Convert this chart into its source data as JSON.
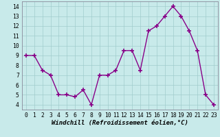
{
  "x": [
    0,
    1,
    2,
    3,
    4,
    5,
    6,
    7,
    8,
    9,
    10,
    11,
    12,
    13,
    14,
    15,
    16,
    17,
    18,
    19,
    20,
    21,
    22,
    23
  ],
  "y": [
    9,
    9,
    7.5,
    7,
    5,
    5,
    4.8,
    5.5,
    4,
    7,
    7,
    7.5,
    9.5,
    9.5,
    7.5,
    11.5,
    12,
    13,
    14,
    13,
    11.5,
    9.5,
    5,
    4
  ],
  "line_color": "#880088",
  "marker_color": "#880088",
  "bg_color": "#c8eaea",
  "grid_color": "#a0cccc",
  "xlabel": "Windchill (Refroidissement éolien,°C)",
  "ylim": [
    3.5,
    14.5
  ],
  "xlim": [
    -0.5,
    23.5
  ],
  "yticks": [
    4,
    5,
    6,
    7,
    8,
    9,
    10,
    11,
    12,
    13,
    14
  ],
  "xticks": [
    0,
    1,
    2,
    3,
    4,
    5,
    6,
    7,
    8,
    9,
    10,
    11,
    12,
    13,
    14,
    15,
    16,
    17,
    18,
    19,
    20,
    21,
    22,
    23
  ],
  "xlabel_fontsize": 6.5,
  "tick_fontsize": 5.8,
  "line_width": 1.0,
  "marker_size": 4
}
